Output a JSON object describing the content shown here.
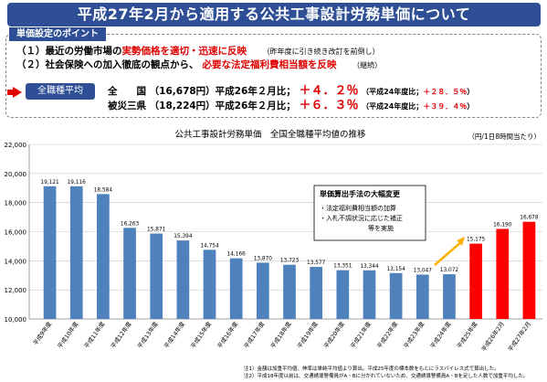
{
  "header": {
    "title": "平成27年2月から適用する公共工事設計労務単価について"
  },
  "points": {
    "tab_label": "単価設定のポイント",
    "line1_a": "（１）最近の労働市場の",
    "line1_b": "実勢価格を適切・迅速に反映",
    "line1_note": "（昨年度に引き続き改訂を前倒し）",
    "line2_a": "（２）社会保険への加入徹底の観点から、",
    "line2_b": "必要な法定福利費相当額を反映",
    "line2_note": "（継続）"
  },
  "summary": {
    "pill_label": "全職種平均",
    "row1_region": "全　　国",
    "row1_value": "（16,678円）平成26年２月比；",
    "row1_change": "＋４．２％",
    "row1_note_a": "（平成24年度比；",
    "row1_note_b": "＋２８．５％",
    "row1_note_c": "）",
    "row2_region": "被災三県",
    "row2_value": "（18,224円）平成26年２月比；",
    "row2_change": "＋６．３％",
    "row2_note_a": "（平成24年度比；",
    "row2_note_b": "＋３９．４％",
    "row2_note_c": "）"
  },
  "colors": {
    "blue_bar": "#4f81bd",
    "red_bar": "#ff0000",
    "accent": "#2e4f96"
  },
  "chart_data": {
    "type": "bar",
    "title": "公共工事設計労務単価　全国全職種平均値の推移",
    "unit_label": "（円/1日8時間当たり）",
    "categories": [
      "平成9年度",
      "平成10年度",
      "平成11年度",
      "平成12年度",
      "平成13年度",
      "平成14年度",
      "平成15年度",
      "平成16年度",
      "平成17年度",
      "平成18年度",
      "平成19年度",
      "平成20年度",
      "平成21年度",
      "平成22年度",
      "平成23年度",
      "平成24年度",
      "平成25年度",
      "平成26年2月",
      "平成27年2月"
    ],
    "values": [
      19121,
      19116,
      18584,
      16263,
      15871,
      15394,
      14754,
      14166,
      13870,
      13723,
      13577,
      13351,
      13344,
      13154,
      13047,
      13072,
      15175,
      16190,
      16678
    ],
    "value_labels": [
      "19,121",
      "19,116",
      "18,584",
      "16,263",
      "15,871",
      "15,394",
      "14,754",
      "14,166",
      "13,870",
      "13,723",
      "13,577",
      "13,351",
      "13,344",
      "13,154",
      "13,047",
      "13,072",
      "15,175",
      "16,190",
      "16,678"
    ],
    "highlight_from_index": 16,
    "ylim": [
      10000,
      22000
    ],
    "yticks": [
      10000,
      12000,
      14000,
      16000,
      18000,
      20000,
      22000
    ],
    "ytick_labels": [
      "10,000",
      "12,000",
      "14,000",
      "16,000",
      "18,000",
      "20,000",
      "22,000"
    ],
    "grid": true,
    "annotation": {
      "title": "単価算出手法の大幅変更",
      "line1": "・法定福利費相当額の加算",
      "line2": "・入札不調状況に応じた補正",
      "line3": "等を実施"
    },
    "footnote1": "注1）金額は加重平均値、伸率は単純平均値より算出。平成25年度の標本数をもとにラスパイレス式で算出した。",
    "footnote2": "注2）平成18年度以前は、交通誘導警備員がA・Bに分かれていないため、交通誘導警備員A・Bを足した人数で加重平均した。"
  }
}
